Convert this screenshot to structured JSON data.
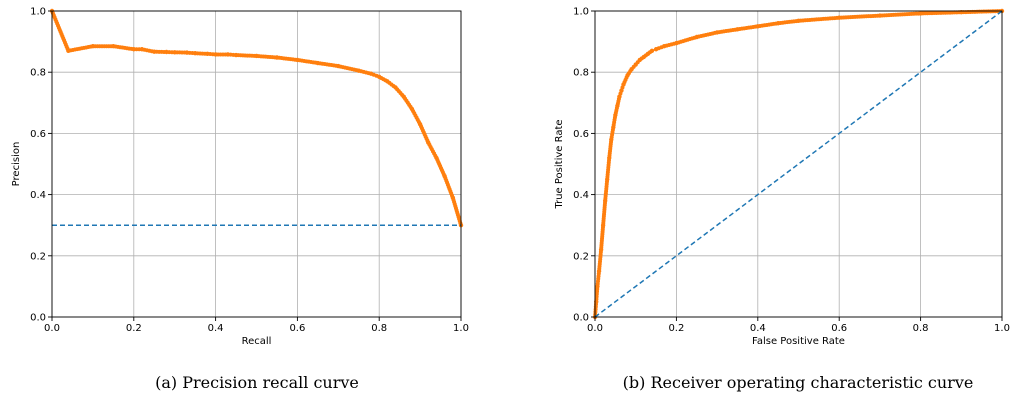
{
  "chart_data": [
    {
      "type": "line",
      "caption": "(a) Precision recall curve",
      "xlabel": "Recall",
      "ylabel": "Precision",
      "xlim": [
        0,
        1
      ],
      "ylim": [
        0,
        1
      ],
      "xticks": [
        "0.0",
        "0.2",
        "0.4",
        "0.6",
        "0.8",
        "1.0"
      ],
      "yticks": [
        "0.0",
        "0.2",
        "0.4",
        "0.6",
        "0.8",
        "1.0"
      ],
      "grid": true,
      "series": [
        {
          "style": "solid-markers",
          "color": "#ff7f0e",
          "x": [
            0.0,
            0.04,
            0.1,
            0.15,
            0.2,
            0.22,
            0.25,
            0.28,
            0.3,
            0.33,
            0.35,
            0.38,
            0.4,
            0.43,
            0.45,
            0.5,
            0.55,
            0.6,
            0.65,
            0.7,
            0.75,
            0.78,
            0.8,
            0.82,
            0.84,
            0.86,
            0.88,
            0.9,
            0.92,
            0.94,
            0.96,
            0.98,
            1.0
          ],
          "y": [
            1.0,
            0.87,
            0.885,
            0.885,
            0.875,
            0.875,
            0.867,
            0.866,
            0.865,
            0.864,
            0.862,
            0.86,
            0.858,
            0.858,
            0.856,
            0.853,
            0.848,
            0.84,
            0.83,
            0.82,
            0.805,
            0.795,
            0.785,
            0.77,
            0.75,
            0.72,
            0.68,
            0.63,
            0.57,
            0.52,
            0.46,
            0.39,
            0.3
          ]
        },
        {
          "style": "dashed",
          "color": "#1f77b4",
          "x": [
            0,
            1
          ],
          "y": [
            0.3,
            0.3
          ]
        }
      ]
    },
    {
      "type": "line",
      "caption": "(b) Receiver operating characteristic curve",
      "xlabel": "False Positive Rate",
      "ylabel": "True Positive Rate",
      "xlim": [
        0,
        1
      ],
      "ylim": [
        0,
        1
      ],
      "xticks": [
        "0.0",
        "0.2",
        "0.4",
        "0.6",
        "0.8",
        "1.0"
      ],
      "yticks": [
        "0.0",
        "0.2",
        "0.4",
        "0.6",
        "0.8",
        "1.0"
      ],
      "grid": true,
      "series": [
        {
          "style": "solid-markers",
          "color": "#ff7f0e",
          "x": [
            0.0,
            0.003,
            0.006,
            0.01,
            0.015,
            0.02,
            0.025,
            0.03,
            0.035,
            0.04,
            0.045,
            0.05,
            0.055,
            0.06,
            0.065,
            0.07,
            0.08,
            0.09,
            0.1,
            0.11,
            0.12,
            0.13,
            0.14,
            0.15,
            0.17,
            0.2,
            0.25,
            0.3,
            0.35,
            0.4,
            0.45,
            0.5,
            0.6,
            0.7,
            0.8,
            0.9,
            1.0
          ],
          "y": [
            0.0,
            0.05,
            0.1,
            0.15,
            0.22,
            0.3,
            0.38,
            0.45,
            0.52,
            0.58,
            0.62,
            0.66,
            0.69,
            0.72,
            0.74,
            0.76,
            0.79,
            0.81,
            0.825,
            0.84,
            0.85,
            0.86,
            0.87,
            0.875,
            0.885,
            0.895,
            0.915,
            0.93,
            0.94,
            0.95,
            0.96,
            0.968,
            0.978,
            0.985,
            0.992,
            0.996,
            1.0
          ]
        },
        {
          "style": "dashed",
          "color": "#1f77b4",
          "x": [
            0,
            1
          ],
          "y": [
            0,
            1
          ]
        }
      ]
    }
  ]
}
